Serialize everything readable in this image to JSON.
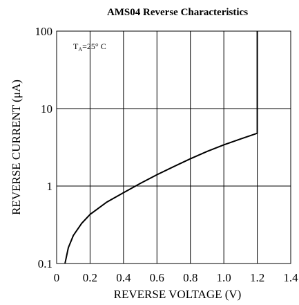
{
  "chart_data": {
    "type": "line",
    "title": "AMS04 Reverse Characteristics",
    "xlabel": "REVERSE VOLTAGE (V)",
    "ylabel": "REVERSE CURRENT (μA)",
    "xlim": [
      0,
      1.4
    ],
    "ylim": [
      0.1,
      100
    ],
    "y_scale": "log",
    "grid": true,
    "x_ticks": [
      "0",
      "0.2",
      "0.4",
      "0.6",
      "0.8",
      "1.0",
      "1.2",
      "1.4"
    ],
    "x_tick_values": [
      0,
      0.2,
      0.4,
      0.6,
      0.8,
      1.0,
      1.2,
      1.4
    ],
    "y_ticks": [
      "0.1",
      "1",
      "10",
      "100"
    ],
    "y_tick_values": [
      0.1,
      1,
      10,
      100
    ],
    "annotation": {
      "prefix": "T",
      "subscript": "A",
      "suffix": "=25° C"
    },
    "series": [
      {
        "x": [
          0.05,
          0.07,
          0.1,
          0.15,
          0.2,
          0.3,
          0.4,
          0.5,
          0.6,
          0.7,
          0.8,
          0.9,
          1.0,
          1.1,
          1.2,
          1.2
        ],
        "y": [
          0.1,
          0.16,
          0.23,
          0.33,
          0.43,
          0.62,
          0.82,
          1.08,
          1.4,
          1.78,
          2.25,
          2.8,
          3.4,
          4.05,
          4.8,
          100
        ]
      }
    ]
  }
}
